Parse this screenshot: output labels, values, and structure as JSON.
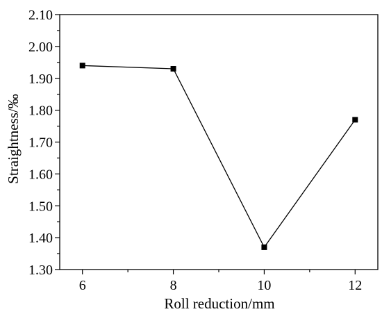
{
  "chart_data": {
    "type": "line",
    "xlabel": "Roll reduction/mm",
    "ylabel": "Straightness/‰",
    "xlim": [
      5.5,
      12.5
    ],
    "ylim": [
      1.3,
      2.1
    ],
    "x_ticks": [
      6,
      8,
      10,
      12
    ],
    "x_tick_labels": [
      "6",
      "8",
      "10",
      "12"
    ],
    "y_ticks": [
      1.3,
      1.4,
      1.5,
      1.6,
      1.7,
      1.8,
      1.9,
      2.0,
      2.1
    ],
    "y_tick_labels": [
      "1.30",
      "1.40",
      "1.50",
      "1.60",
      "1.70",
      "1.80",
      "1.90",
      "2.00",
      "2.10"
    ],
    "grid": false,
    "marker": "square",
    "series": [
      {
        "x": [
          6,
          8,
          10,
          12
        ],
        "values": [
          1.94,
          1.93,
          1.37,
          1.77
        ]
      }
    ]
  }
}
